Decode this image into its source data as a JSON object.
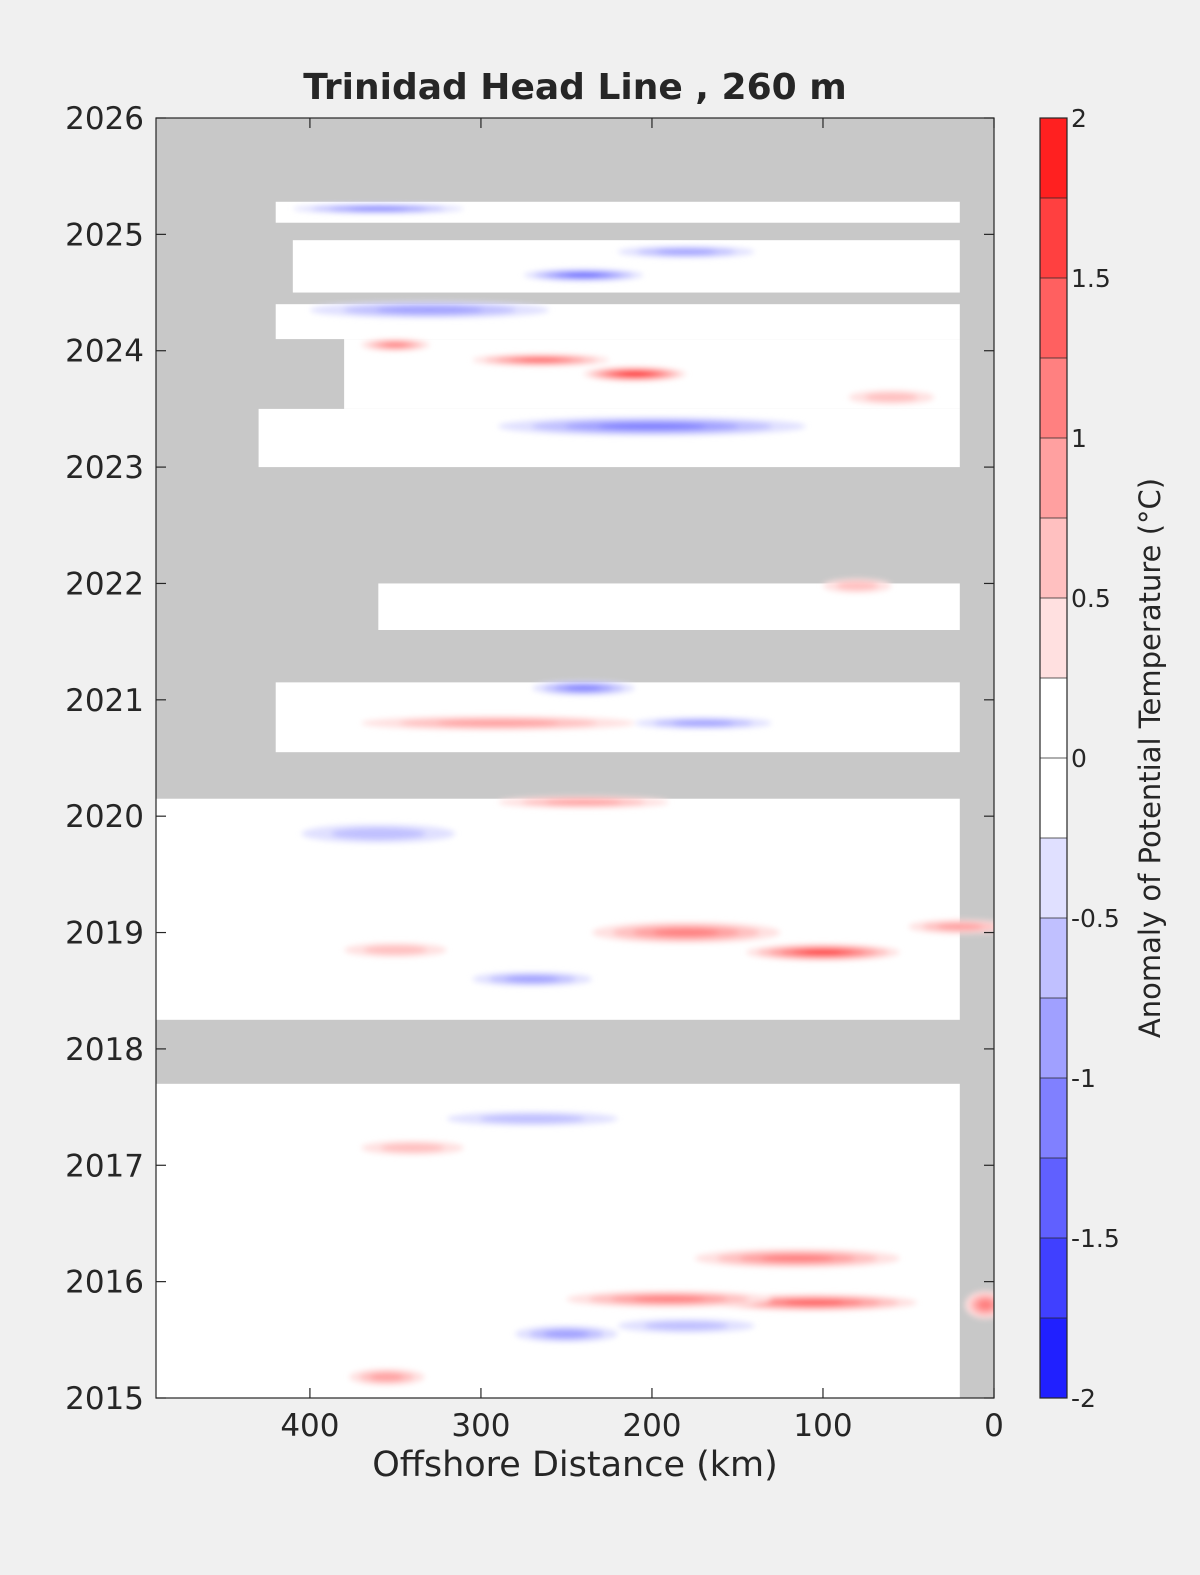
{
  "chart_data": {
    "type": "heatmap",
    "title": "Trinidad Head Line , 260 m",
    "xlabel": "Offshore Distance (km)",
    "ylabel": "",
    "xlim": [
      490,
      0
    ],
    "x_reversed": true,
    "x_ticks": [
      400,
      300,
      200,
      100,
      0
    ],
    "ylim": [
      2015,
      2026
    ],
    "y_ticks": [
      2015,
      2016,
      2017,
      2018,
      2019,
      2020,
      2021,
      2022,
      2023,
      2024,
      2025,
      2026
    ],
    "colorbar": {
      "label": "Anomaly of Potential Temperature (°C)",
      "range": [
        -2,
        2
      ],
      "levels": [
        -2,
        -1.75,
        -1.5,
        -1.25,
        -1,
        -0.75,
        -0.5,
        -0.25,
        0,
        0.25,
        0.5,
        0.75,
        1,
        1.25,
        1.5,
        1.75,
        2
      ],
      "tick_values": [
        2,
        1.5,
        1,
        0.5,
        0,
        -0.5,
        -1,
        -1.5,
        -2
      ],
      "tick_labels": [
        "2",
        "1.5",
        "1",
        "0.5",
        "0",
        "-0.5",
        "-1",
        "-1.5",
        "-2"
      ],
      "colors": [
        "#0000ff",
        "#2020ff",
        "#4040ff",
        "#6060ff",
        "#8080ff",
        "#a0a0ff",
        "#c0c0ff",
        "#e0e0ff",
        "#ffffff",
        "#ffffff",
        "#ffe0e0",
        "#ffc0c0",
        "#ffa0a0",
        "#ff8080",
        "#ff6060",
        "#ff4040",
        "#ff2020",
        "#ff0000"
      ]
    },
    "no_data_color": "#c8c8c8",
    "data_coverage": [
      {
        "t_start": 2015.0,
        "t_end": 2017.7,
        "x_near": 20,
        "x_far": 490
      },
      {
        "t_start": 2018.25,
        "t_end": 2020.15,
        "x_near": 20,
        "x_far": 490
      },
      {
        "t_start": 2020.55,
        "t_end": 2021.15,
        "x_near": 20,
        "x_far": 420
      },
      {
        "t_start": 2021.6,
        "t_end": 2022.0,
        "x_near": 20,
        "x_far": 360
      },
      {
        "t_start": 2023.0,
        "t_end": 2023.5,
        "x_near": 20,
        "x_far": 430
      },
      {
        "t_start": 2023.5,
        "t_end": 2024.1,
        "x_near": 20,
        "x_far": 380
      },
      {
        "t_start": 2024.1,
        "t_end": 2024.4,
        "x_near": 20,
        "x_far": 420
      },
      {
        "t_start": 2024.5,
        "t_end": 2024.95,
        "x_near": 20,
        "x_far": 410
      },
      {
        "t_start": 2025.1,
        "t_end": 2025.28,
        "x_near": 20,
        "x_far": 420
      }
    ],
    "anomaly_features": [
      {
        "x": 105,
        "t": 2015.82,
        "value": 1.3,
        "rx": 60,
        "rt": 0.07
      },
      {
        "x": 190,
        "t": 2015.85,
        "value": 1.0,
        "rx": 60,
        "rt": 0.07
      },
      {
        "x": 115,
        "t": 2016.2,
        "value": 1.1,
        "rx": 60,
        "rt": 0.08
      },
      {
        "x": 5,
        "t": 2015.8,
        "value": 1.2,
        "rx": 12,
        "rt": 0.12
      },
      {
        "x": 355,
        "t": 2015.18,
        "value": 0.9,
        "rx": 22,
        "rt": 0.07
      },
      {
        "x": 250,
        "t": 2015.55,
        "value": -0.8,
        "rx": 30,
        "rt": 0.07
      },
      {
        "x": 180,
        "t": 2015.62,
        "value": -0.7,
        "rx": 40,
        "rt": 0.06
      },
      {
        "x": 340,
        "t": 2017.15,
        "value": 0.7,
        "rx": 30,
        "rt": 0.06
      },
      {
        "x": 270,
        "t": 2017.4,
        "value": -0.6,
        "rx": 50,
        "rt": 0.06
      },
      {
        "x": 180,
        "t": 2019.0,
        "value": 1.0,
        "rx": 55,
        "rt": 0.09
      },
      {
        "x": 100,
        "t": 2018.83,
        "value": 1.6,
        "rx": 45,
        "rt": 0.07
      },
      {
        "x": 20,
        "t": 2019.05,
        "value": 0.8,
        "rx": 30,
        "rt": 0.06
      },
      {
        "x": 350,
        "t": 2018.85,
        "value": 0.6,
        "rx": 30,
        "rt": 0.06
      },
      {
        "x": 270,
        "t": 2018.6,
        "value": -0.9,
        "rx": 35,
        "rt": 0.06
      },
      {
        "x": 360,
        "t": 2019.85,
        "value": -0.7,
        "rx": 45,
        "rt": 0.08
      },
      {
        "x": 240,
        "t": 2020.12,
        "value": 0.8,
        "rx": 50,
        "rt": 0.05
      },
      {
        "x": 290,
        "t": 2020.8,
        "value": 0.8,
        "rx": 80,
        "rt": 0.06
      },
      {
        "x": 240,
        "t": 2021.1,
        "value": -1.1,
        "rx": 30,
        "rt": 0.06
      },
      {
        "x": 170,
        "t": 2020.8,
        "value": -0.8,
        "rx": 40,
        "rt": 0.05
      },
      {
        "x": 80,
        "t": 2021.98,
        "value": 0.5,
        "rx": 20,
        "rt": 0.06
      },
      {
        "x": 200,
        "t": 2023.35,
        "value": -1.1,
        "rx": 90,
        "rt": 0.08
      },
      {
        "x": 60,
        "t": 2023.6,
        "value": 0.7,
        "rx": 25,
        "rt": 0.06
      },
      {
        "x": 210,
        "t": 2023.8,
        "value": 1.9,
        "rx": 30,
        "rt": 0.06
      },
      {
        "x": 265,
        "t": 2023.92,
        "value": 1.4,
        "rx": 40,
        "rt": 0.05
      },
      {
        "x": 350,
        "t": 2024.05,
        "value": 1.1,
        "rx": 20,
        "rt": 0.05
      },
      {
        "x": 330,
        "t": 2024.35,
        "value": -0.9,
        "rx": 70,
        "rt": 0.07
      },
      {
        "x": 240,
        "t": 2024.65,
        "value": -1.4,
        "rx": 35,
        "rt": 0.05
      },
      {
        "x": 180,
        "t": 2024.85,
        "value": -0.8,
        "rx": 40,
        "rt": 0.05
      },
      {
        "x": 360,
        "t": 2025.22,
        "value": -1.2,
        "rx": 50,
        "rt": 0.04
      }
    ]
  }
}
